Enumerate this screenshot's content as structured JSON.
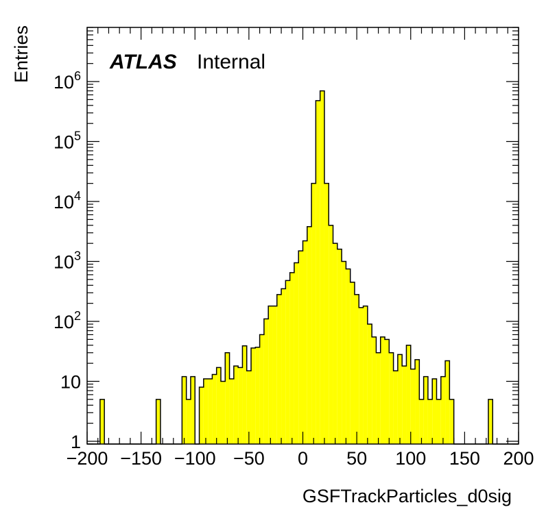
{
  "chart_data": {
    "type": "histogram",
    "xlabel": "GSFTrackParticles_d0sig",
    "ylabel": "Entries",
    "experiment_label": "ATLAS",
    "status_label": "Internal",
    "xlim": [
      -200,
      200
    ],
    "ylim": [
      0.9,
      8000000
    ],
    "log_y": true,
    "grid": false,
    "legend": "none",
    "fill_color": "#ffff00",
    "line_color": "#000000",
    "x_ticks": [
      -200,
      -150,
      -100,
      -50,
      0,
      50,
      100,
      150,
      200
    ],
    "x_tick_labels": [
      "−200",
      "−150",
      "−100",
      "−50",
      "0",
      "50",
      "100",
      "150",
      "200"
    ],
    "y_ticks": [
      {
        "value": 1,
        "base": "1",
        "exp": ""
      },
      {
        "value": 10,
        "base": "10",
        "exp": ""
      },
      {
        "value": 100,
        "base": "10",
        "exp": "2"
      },
      {
        "value": 1000,
        "base": "10",
        "exp": "3"
      },
      {
        "value": 10000,
        "base": "10",
        "exp": "4"
      },
      {
        "value": 100000,
        "base": "10",
        "exp": "5"
      },
      {
        "value": 1000000,
        "base": "10",
        "exp": "6"
      }
    ],
    "bin_start": -200,
    "bin_width": 4,
    "values": [
      0,
      0,
      0,
      5,
      0,
      0,
      0,
      0,
      0,
      0,
      0,
      0,
      0,
      0,
      0,
      0,
      5,
      0,
      0,
      0,
      0,
      0,
      12,
      5,
      12,
      0,
      8,
      11,
      11,
      13,
      17,
      10,
      30,
      11,
      18,
      17,
      39,
      15,
      36,
      37,
      60,
      110,
      180,
      180,
      280,
      350,
      480,
      650,
      950,
      1500,
      2200,
      3800,
      20000,
      480000,
      700000,
      20000,
      4000,
      2000,
      1600,
      1000,
      750,
      450,
      280,
      170,
      180,
      90,
      55,
      30,
      55,
      50,
      30,
      15,
      28,
      18,
      40,
      16,
      23,
      5,
      12,
      5,
      11,
      5,
      12,
      22,
      5,
      0,
      0,
      0,
      0,
      0,
      0,
      0,
      0,
      5,
      0,
      0,
      0,
      0,
      0,
      0
    ]
  }
}
